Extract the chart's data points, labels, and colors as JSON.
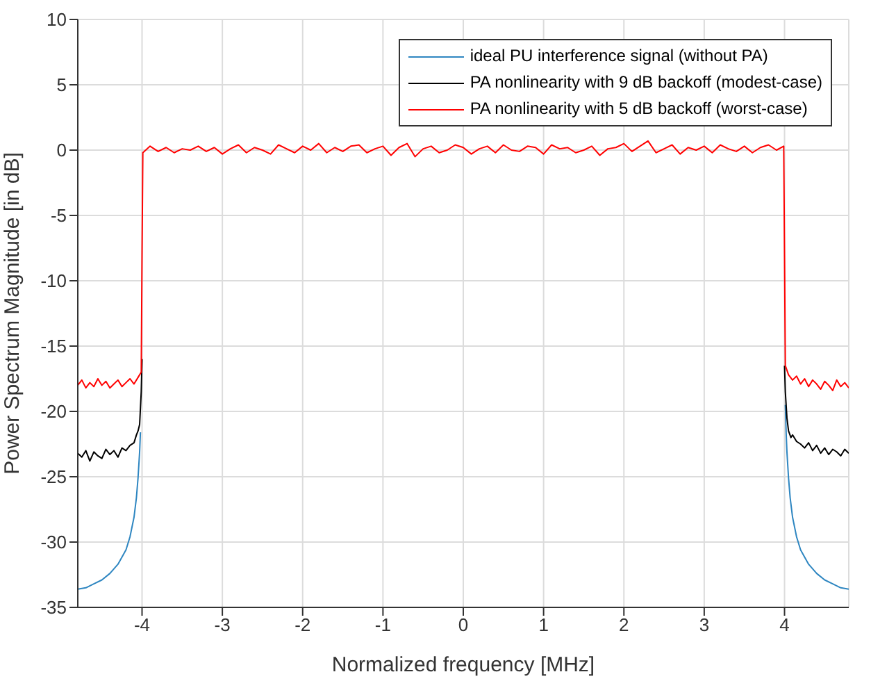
{
  "chart_data": {
    "type": "line",
    "xlabel": "Normalized frequency [MHz]",
    "ylabel": "Power Spectrum Magnitude [in dB]",
    "xlim": [
      -4.8,
      4.8
    ],
    "ylim": [
      -35,
      10
    ],
    "xticks": [
      -4,
      -3,
      -2,
      -1,
      0,
      1,
      2,
      3,
      4
    ],
    "yticks": [
      -35,
      -30,
      -25,
      -20,
      -15,
      -10,
      -5,
      0,
      5,
      10
    ],
    "grid": true,
    "legend": "top right",
    "marker": "none",
    "line_style": "solid",
    "series": [
      {
        "name": "ideal PU interference signal (without PA)",
        "color": "#2e86c1",
        "x": [
          -4.8,
          -4.7,
          -4.6,
          -4.5,
          -4.4,
          -4.3,
          -4.2,
          -4.15,
          -4.1,
          -4.07,
          -4.05,
          -4.03,
          -4.02,
          -4.01,
          -4.0,
          -3.99,
          3.99,
          4.0,
          4.01,
          4.02,
          4.03,
          4.05,
          4.07,
          4.1,
          4.15,
          4.2,
          4.3,
          4.4,
          4.5,
          4.6,
          4.7,
          4.8
        ],
        "values": [
          -33.6,
          -33.5,
          -33.2,
          -32.9,
          -32.4,
          -31.7,
          -30.6,
          -29.6,
          -28.1,
          -26.6,
          -25.1,
          -23.1,
          -21.6,
          null,
          null,
          null,
          null,
          null,
          -19.5,
          -21.6,
          -23.1,
          -25.1,
          -26.6,
          -28.1,
          -29.6,
          -30.6,
          -31.7,
          -32.4,
          -32.9,
          -33.2,
          -33.5,
          -33.6
        ]
      },
      {
        "name": "PA nonlinearity with 9 dB backoff (modest-case)",
        "color": "#000000",
        "x": [
          -4.8,
          -4.75,
          -4.7,
          -4.65,
          -4.6,
          -4.55,
          -4.5,
          -4.45,
          -4.4,
          -4.35,
          -4.3,
          -4.25,
          -4.2,
          -4.15,
          -4.1,
          -4.07,
          -4.05,
          -4.03,
          -4.01,
          -4.0,
          -3.99,
          3.99,
          4.0,
          4.01,
          4.03,
          4.05,
          4.08,
          4.1,
          4.15,
          4.2,
          4.25,
          4.3,
          4.35,
          4.4,
          4.45,
          4.5,
          4.55,
          4.6,
          4.65,
          4.7,
          4.75,
          4.8
        ],
        "values": [
          -23.2,
          -23.5,
          -23.0,
          -23.8,
          -23.1,
          -23.4,
          -23.6,
          -22.9,
          -23.3,
          -23.0,
          -23.5,
          -22.8,
          -23.0,
          -22.6,
          -22.4,
          -21.8,
          -21.5,
          -21.0,
          -18.5,
          -16,
          null,
          null,
          -16.5,
          -18.5,
          -20.5,
          -21.5,
          -22.0,
          -21.8,
          -22.3,
          -22.5,
          -22.8,
          -22.4,
          -23.0,
          -22.6,
          -23.2,
          -22.8,
          -23.3,
          -22.9,
          -23.1,
          -23.4,
          -22.9,
          -23.2
        ]
      },
      {
        "name": "PA nonlinearity with 5 dB backoff (worst-case)",
        "color": "#ff0000",
        "x": [
          -4.8,
          -4.75,
          -4.7,
          -4.65,
          -4.6,
          -4.55,
          -4.5,
          -4.45,
          -4.4,
          -4.35,
          -4.3,
          -4.25,
          -4.2,
          -4.15,
          -4.1,
          -4.05,
          -4.01,
          -4.0,
          -3.99,
          -3.9,
          -3.8,
          -3.7,
          -3.6,
          -3.5,
          -3.4,
          -3.3,
          -3.2,
          -3.1,
          -3.0,
          -2.9,
          -2.8,
          -2.7,
          -2.6,
          -2.5,
          -2.4,
          -2.3,
          -2.2,
          -2.1,
          -2.0,
          -1.9,
          -1.8,
          -1.7,
          -1.6,
          -1.5,
          -1.4,
          -1.3,
          -1.2,
          -1.1,
          -1.0,
          -0.9,
          -0.8,
          -0.7,
          -0.6,
          -0.5,
          -0.4,
          -0.3,
          -0.2,
          -0.1,
          0.0,
          0.1,
          0.2,
          0.3,
          0.4,
          0.5,
          0.6,
          0.7,
          0.8,
          0.9,
          1.0,
          1.1,
          1.2,
          1.3,
          1.4,
          1.5,
          1.6,
          1.7,
          1.8,
          1.9,
          2.0,
          2.1,
          2.2,
          2.3,
          2.4,
          2.5,
          2.6,
          2.7,
          2.8,
          2.9,
          3.0,
          3.1,
          3.2,
          3.3,
          3.4,
          3.5,
          3.6,
          3.7,
          3.8,
          3.9,
          3.99,
          4.0,
          4.01,
          4.05,
          4.1,
          4.15,
          4.2,
          4.25,
          4.3,
          4.35,
          4.4,
          4.45,
          4.5,
          4.55,
          4.6,
          4.65,
          4.7,
          4.75,
          4.8
        ],
        "values": [
          -18.0,
          -17.6,
          -18.2,
          -17.8,
          -18.1,
          -17.5,
          -18.0,
          -17.7,
          -18.2,
          -17.9,
          -17.6,
          -18.1,
          -17.8,
          -17.5,
          -17.9,
          -17.4,
          -17.0,
          -8,
          -0.2,
          0.3,
          -0.1,
          0.2,
          -0.2,
          0.1,
          0.0,
          0.3,
          -0.1,
          0.2,
          -0.3,
          0.1,
          0.4,
          -0.2,
          0.2,
          0.0,
          -0.3,
          0.4,
          0.1,
          -0.2,
          0.3,
          0.0,
          0.5,
          -0.2,
          0.2,
          -0.1,
          0.3,
          0.4,
          -0.2,
          0.1,
          0.3,
          -0.4,
          0.2,
          0.5,
          -0.5,
          0.1,
          0.3,
          -0.2,
          0.0,
          0.4,
          0.2,
          -0.3,
          0.1,
          0.3,
          -0.2,
          0.4,
          0.0,
          -0.1,
          0.3,
          0.2,
          -0.3,
          0.4,
          0.1,
          0.2,
          -0.2,
          0.0,
          0.3,
          -0.4,
          0.1,
          0.2,
          0.5,
          -0.1,
          0.3,
          0.7,
          -0.2,
          0.1,
          0.4,
          -0.3,
          0.2,
          0.0,
          0.3,
          -0.2,
          0.4,
          0.1,
          -0.1,
          0.3,
          -0.2,
          0.2,
          0.4,
          0.0,
          0.3,
          -8,
          -16.5,
          -17.2,
          -17.6,
          -17.3,
          -17.9,
          -17.5,
          -18.1,
          -17.6,
          -17.9,
          -18.3,
          -17.7,
          -18.0,
          -18.4,
          -17.6,
          -18.1,
          -17.8,
          -18.2
        ]
      }
    ]
  }
}
